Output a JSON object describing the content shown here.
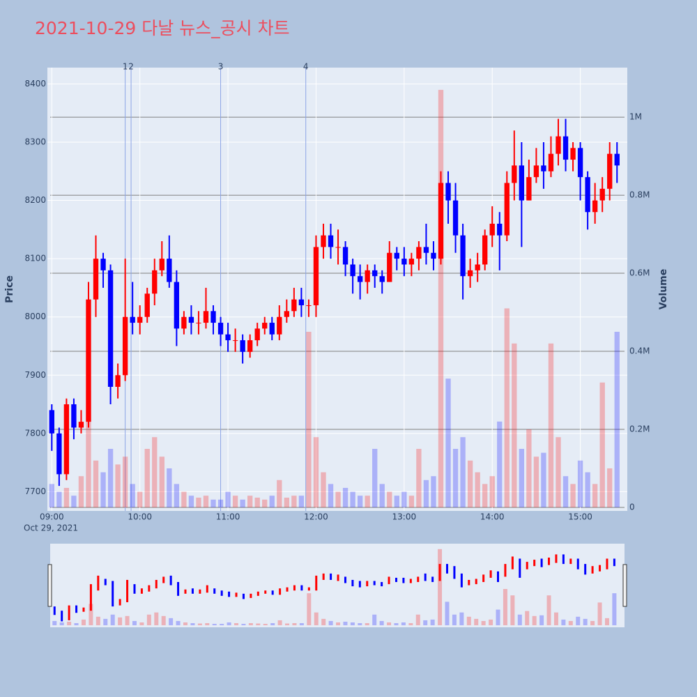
{
  "chart_data": {
    "type": "candlestick",
    "title": "2021-10-29 다날 뉴스_공시 차트",
    "y_label": "Price",
    "y2_label": "Volume",
    "x_date_label": "Oct 29, 2021",
    "increasing_color": "#ff0000",
    "decreasing_color": "#0000ff",
    "grid": true,
    "x": [
      "09:00",
      "09:05",
      "09:10",
      "09:15",
      "09:20",
      "09:25",
      "09:30",
      "09:35",
      "09:40",
      "09:45",
      "09:50",
      "09:55",
      "10:00",
      "10:05",
      "10:10",
      "10:15",
      "10:20",
      "10:25",
      "10:30",
      "10:35",
      "10:40",
      "10:45",
      "10:50",
      "10:55",
      "11:00",
      "11:05",
      "11:10",
      "11:15",
      "11:20",
      "11:25",
      "11:30",
      "11:35",
      "11:40",
      "11:45",
      "11:50",
      "11:55",
      "12:00",
      "12:05",
      "12:10",
      "12:15",
      "12:20",
      "12:25",
      "12:30",
      "12:35",
      "12:40",
      "12:45",
      "12:50",
      "12:55",
      "13:00",
      "13:05",
      "13:10",
      "13:15",
      "13:20",
      "13:25",
      "13:30",
      "13:35",
      "13:40",
      "13:45",
      "13:50",
      "13:55",
      "14:00",
      "14:05",
      "14:10",
      "14:15",
      "14:20",
      "14:25",
      "14:30",
      "14:35",
      "14:40",
      "14:45",
      "14:50",
      "14:55",
      "15:00",
      "15:05",
      "15:10",
      "15:15",
      "15:20",
      "15:25"
    ],
    "open": [
      7840,
      7800,
      7730,
      7850,
      7810,
      7820,
      8030,
      8100,
      8080,
      7880,
      7900,
      8000,
      7990,
      8000,
      8040,
      8080,
      8100,
      8060,
      7980,
      8000,
      7990,
      7990,
      8010,
      7990,
      7970,
      7960,
      7960,
      7940,
      7960,
      7980,
      7990,
      7970,
      8000,
      8010,
      8030,
      8020,
      8020,
      8120,
      8140,
      8120,
      8120,
      8090,
      8070,
      8060,
      8080,
      8070,
      8060,
      8110,
      8100,
      8090,
      8100,
      8120,
      8110,
      8100,
      8230,
      8200,
      8140,
      8070,
      8080,
      8090,
      8140,
      8160,
      8140,
      8230,
      8260,
      8200,
      8240,
      8260,
      8250,
      8280,
      8310,
      8270,
      8290,
      8240,
      8180,
      8200,
      8220,
      8280
    ],
    "high": [
      7850,
      7810,
      7860,
      7860,
      7840,
      8060,
      8140,
      8110,
      8090,
      7920,
      8100,
      8060,
      8020,
      8050,
      8100,
      8130,
      8140,
      8080,
      8010,
      8020,
      8010,
      8050,
      8020,
      8000,
      7990,
      7980,
      7970,
      7970,
      7990,
      8000,
      8000,
      8020,
      8030,
      8050,
      8050,
      8030,
      8140,
      8160,
      8160,
      8150,
      8130,
      8100,
      8090,
      8090,
      8090,
      8080,
      8130,
      8120,
      8120,
      8110,
      8130,
      8160,
      8130,
      8250,
      8250,
      8230,
      8160,
      8100,
      8110,
      8150,
      8190,
      8180,
      8250,
      8320,
      8300,
      8270,
      8290,
      8300,
      8310,
      8340,
      8340,
      8300,
      8300,
      8250,
      8230,
      8240,
      8300,
      8300
    ],
    "low": [
      7770,
      7710,
      7720,
      7790,
      7800,
      7810,
      8000,
      8050,
      7850,
      7860,
      7890,
      7970,
      7970,
      7990,
      8020,
      8070,
      8050,
      7950,
      7970,
      7970,
      7970,
      7980,
      7970,
      7950,
      7940,
      7940,
      7920,
      7930,
      7950,
      7970,
      7960,
      7960,
      7990,
      8000,
      8000,
      8000,
      8000,
      8100,
      8100,
      8090,
      8070,
      8040,
      8030,
      8040,
      8050,
      8040,
      8060,
      8080,
      8070,
      8070,
      8080,
      8090,
      8080,
      8090,
      8160,
      8110,
      8030,
      8050,
      8060,
      8080,
      8120,
      8080,
      8130,
      8200,
      8120,
      8200,
      8230,
      8220,
      8240,
      8260,
      8250,
      8250,
      8200,
      8150,
      8160,
      8180,
      8200,
      8230
    ],
    "close": [
      7800,
      7730,
      7850,
      7810,
      7820,
      8030,
      8100,
      8080,
      7880,
      7900,
      8000,
      7990,
      8000,
      8040,
      8080,
      8100,
      8060,
      7980,
      8000,
      7990,
      7990,
      8010,
      7990,
      7970,
      7960,
      7960,
      7940,
      7960,
      7980,
      7990,
      7970,
      8000,
      8010,
      8030,
      8020,
      8020,
      8120,
      8140,
      8120,
      8120,
      8090,
      8070,
      8060,
      8080,
      8070,
      8060,
      8110,
      8100,
      8090,
      8100,
      8120,
      8110,
      8100,
      8230,
      8200,
      8140,
      8070,
      8080,
      8090,
      8140,
      8160,
      8140,
      8230,
      8260,
      8200,
      8240,
      8260,
      8250,
      8280,
      8310,
      8270,
      8290,
      8240,
      8180,
      8200,
      8220,
      8280,
      8260
    ],
    "volume": [
      60000,
      40000,
      50000,
      30000,
      80000,
      300000,
      120000,
      90000,
      150000,
      110000,
      130000,
      60000,
      40000,
      150000,
      180000,
      130000,
      100000,
      60000,
      40000,
      30000,
      25000,
      30000,
      20000,
      20000,
      40000,
      30000,
      20000,
      30000,
      25000,
      20000,
      30000,
      70000,
      25000,
      30000,
      30000,
      450000,
      180000,
      90000,
      60000,
      40000,
      50000,
      40000,
      30000,
      30000,
      150000,
      60000,
      40000,
      30000,
      40000,
      30000,
      150000,
      70000,
      80000,
      1070000,
      330000,
      150000,
      180000,
      120000,
      90000,
      60000,
      80000,
      220000,
      510000,
      420000,
      150000,
      200000,
      130000,
      140000,
      420000,
      180000,
      80000,
      60000,
      120000,
      90000,
      60000,
      320000,
      100000,
      450000
    ],
    "xlim": [
      "08:57",
      "15:32"
    ],
    "xticks": [
      "09:00",
      "10:00",
      "11:00",
      "12:00",
      "13:00",
      "14:00",
      "15:00"
    ],
    "ylim": [
      7667,
      8428
    ],
    "yticks": [
      7700,
      7800,
      7900,
      8000,
      8100,
      8200,
      8300,
      8400
    ],
    "y2lim": [
      -9000,
      1127000
    ],
    "y2ticks": [
      0,
      {
        "value": 200000,
        "label": "0.2M"
      },
      {
        "value": 400000,
        "label": "0.4M"
      },
      {
        "value": 600000,
        "label": "0.6M"
      },
      {
        "value": 800000,
        "label": "0.8M"
      },
      {
        "value": 1000000,
        "label": "1M"
      }
    ],
    "annotations": [
      {
        "x": "09:50",
        "label": "1"
      },
      {
        "x": "09:54",
        "label": "2"
      },
      {
        "x": "10:55",
        "label": "3"
      },
      {
        "x": "11:53",
        "label": "4"
      }
    ]
  }
}
